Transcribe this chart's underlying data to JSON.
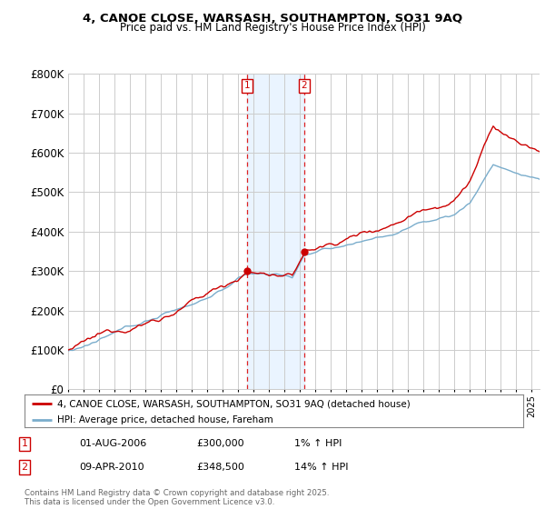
{
  "title_line1": "4, CANOE CLOSE, WARSASH, SOUTHAMPTON, SO31 9AQ",
  "title_line2": "Price paid vs. HM Land Registry's House Price Index (HPI)",
  "ylim": [
    0,
    800000
  ],
  "yticks": [
    0,
    100000,
    200000,
    300000,
    400000,
    500000,
    600000,
    700000,
    800000
  ],
  "ytick_labels": [
    "£0",
    "£100K",
    "£200K",
    "£300K",
    "£400K",
    "£500K",
    "£600K",
    "£700K",
    "£800K"
  ],
  "xlim_start": 1995.0,
  "xlim_end": 2025.5,
  "sale1_date_num": 2006.58,
  "sale1_price": 300000,
  "sale1_label": "1",
  "sale1_info_date": "01-AUG-2006",
  "sale1_info_price": "£300,000",
  "sale1_info_hpi": "1% ↑ HPI",
  "sale2_date_num": 2010.27,
  "sale2_price": 348500,
  "sale2_label": "2",
  "sale2_info_date": "09-APR-2010",
  "sale2_info_price": "£348,500",
  "sale2_info_hpi": "14% ↑ HPI",
  "legend_line1": "4, CANOE CLOSE, WARSASH, SOUTHAMPTON, SO31 9AQ (detached house)",
  "legend_line2": "HPI: Average price, detached house, Fareham",
  "footer": "Contains HM Land Registry data © Crown copyright and database right 2025.\nThis data is licensed under the Open Government Licence v3.0.",
  "line_color_red": "#cc0000",
  "line_color_blue": "#7aadcc",
  "background_color": "#ffffff",
  "grid_color": "#cccccc",
  "shade_color": "#ddeeff",
  "seed": 12345
}
